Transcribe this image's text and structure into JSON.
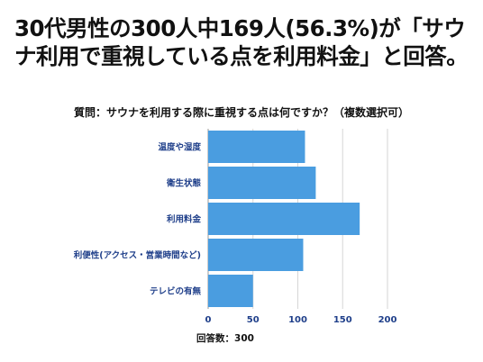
{
  "headline": "30代男性の300人中169人(56.3%)が「サウナ利用で重視している点を利用料金」と回答。",
  "chart_data": {
    "type": "bar",
    "orientation": "horizontal",
    "title": "質問：サウナを利用する際に重視する点は何ですか？（複数選択可）",
    "xlabel": "回答数：300",
    "ylabel": "",
    "categories": [
      "温度や湿度",
      "衛生状態",
      "利用料金",
      "利便性(アクセス・営業時間など)",
      "テレビの有無"
    ],
    "values": [
      108,
      120,
      169,
      106,
      50
    ],
    "xlim": [
      0,
      200
    ],
    "xticks": [
      0,
      50,
      100,
      150,
      200
    ],
    "bar_color": "#4a9de0",
    "grid": "vertical",
    "legend": "none"
  }
}
